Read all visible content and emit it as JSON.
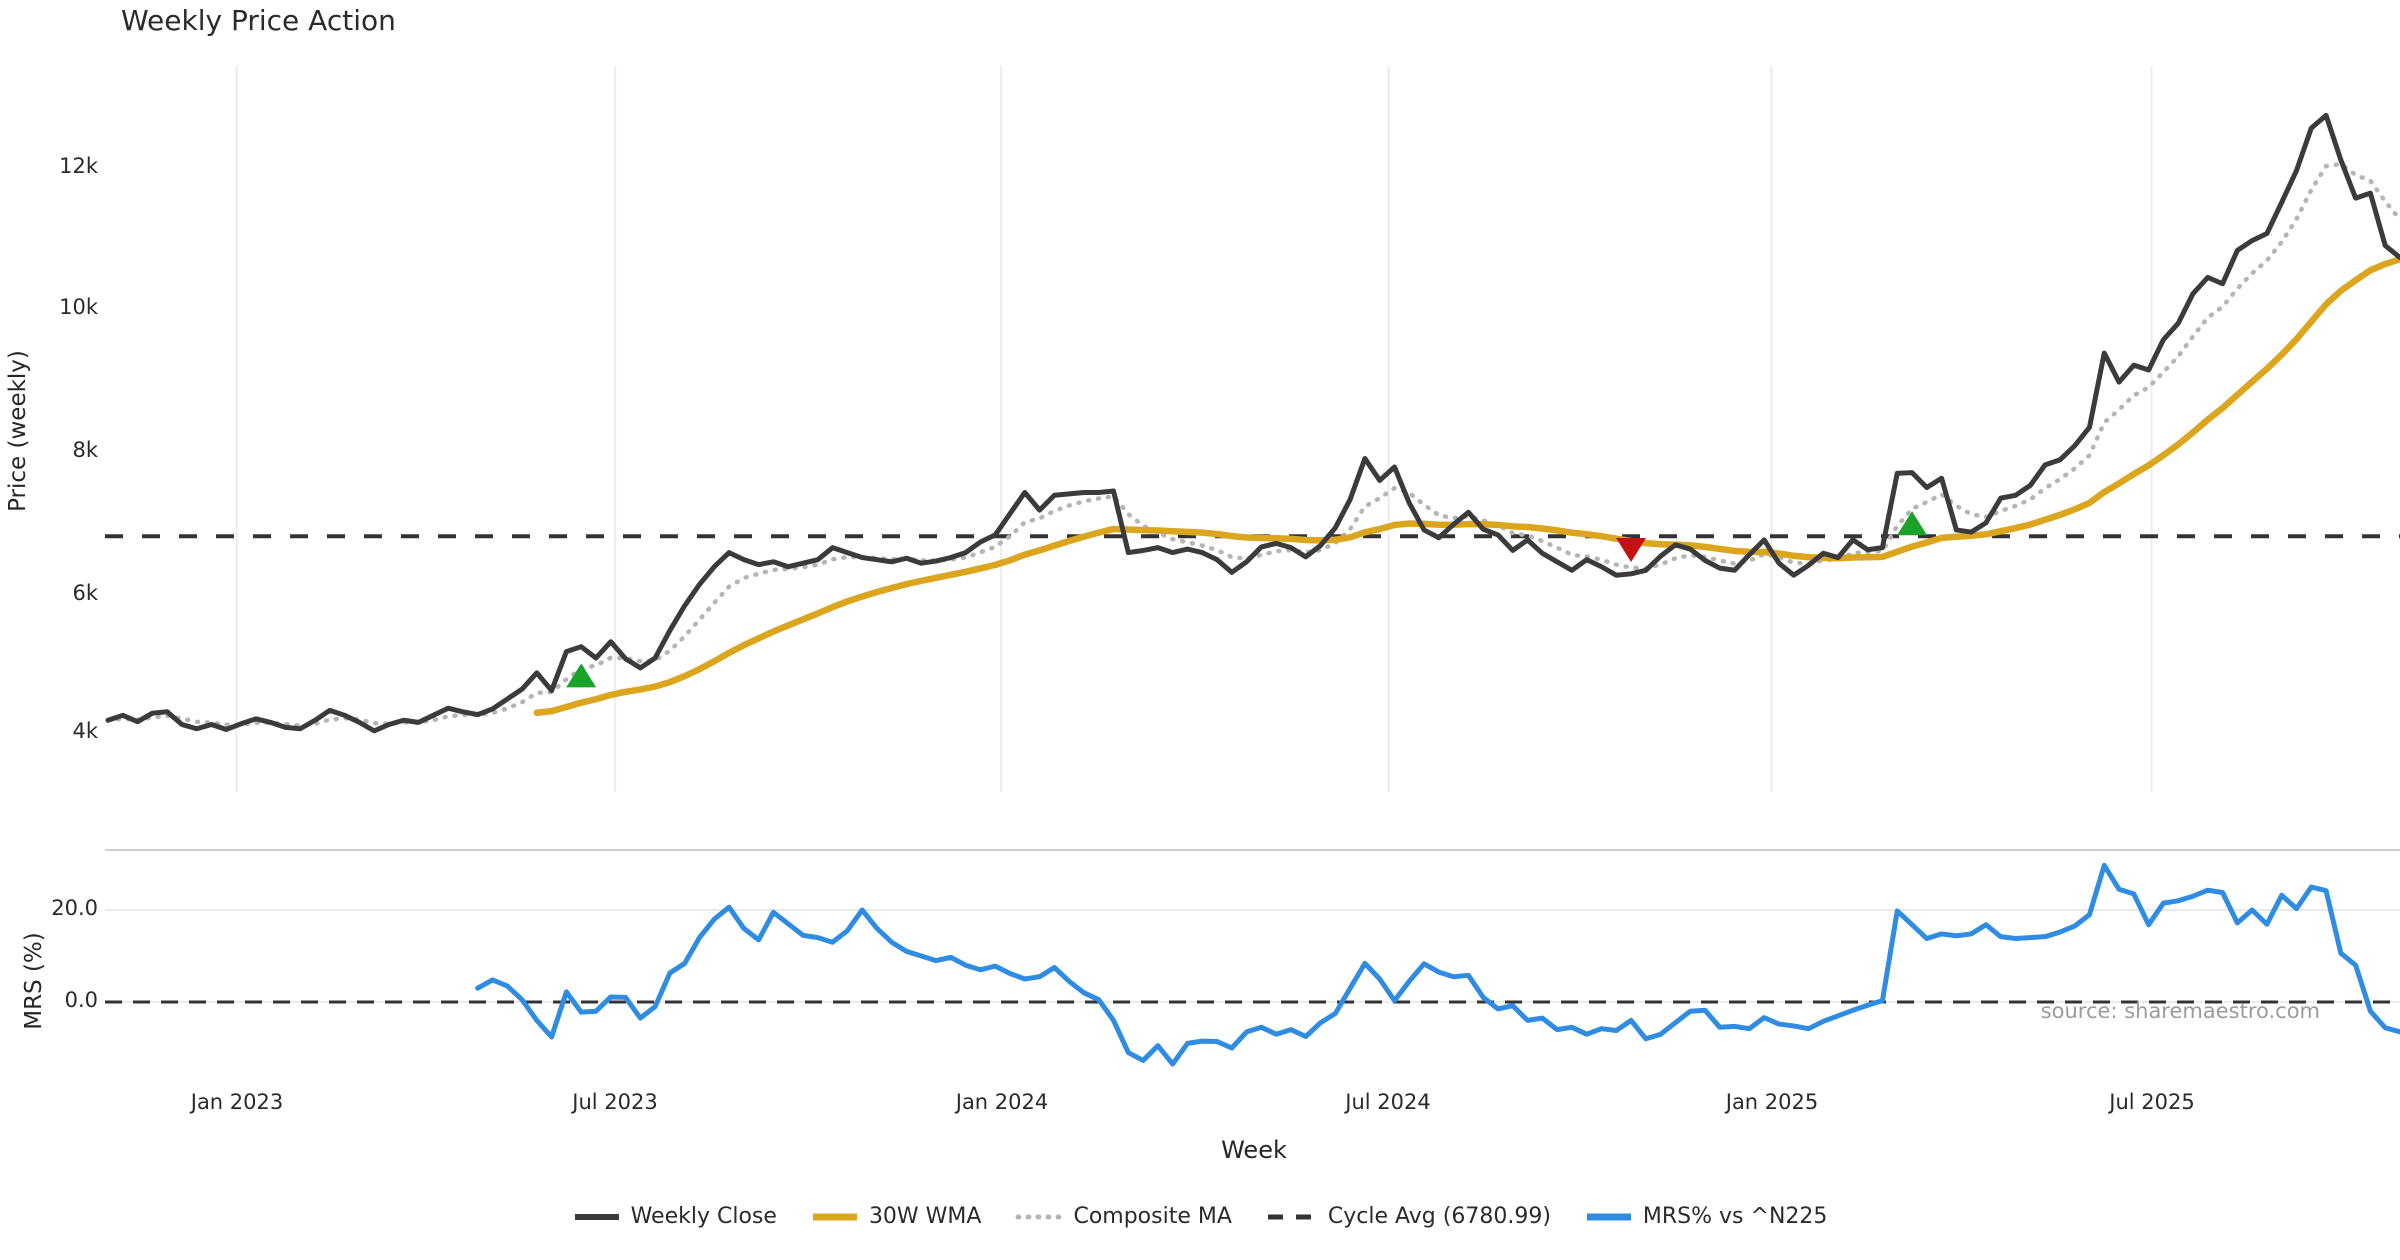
{
  "title": "Weekly Price Action",
  "source_note": "source: sharemaestro.com",
  "xlabel": "Week",
  "colors": {
    "weekly_close": "#3b3b3b",
    "wma30": "#dca51e",
    "composite_ma": "#b5b5b5",
    "cycle_avg": "#333333",
    "mrs": "#2e8ce2",
    "buy_marker": "#1aa328",
    "sell_marker": "#c41212",
    "grid": "#ececec",
    "panel_border": "#cfcfcf",
    "light_rule": "#e9e9e9",
    "text": "#262626",
    "muted": "#9b9b9b"
  },
  "legend": [
    {
      "label": "Weekly Close",
      "style": "solid-dark"
    },
    {
      "label": "30W WMA",
      "style": "solid-gold"
    },
    {
      "label": "Composite MA",
      "style": "dotted-gray"
    },
    {
      "label": "Cycle Avg (6780.99)",
      "style": "dashed-dark"
    },
    {
      "label": "MRS% vs ^N225",
      "style": "solid-blue"
    }
  ],
  "chart_data": [
    {
      "type": "line",
      "title": "Weekly Price Action",
      "ylabel": "Price (weekly)",
      "ylim": [
        3200,
        13370
      ],
      "grid": "vertical-only",
      "yticks": [
        {
          "label": "4k",
          "value": 4000
        },
        {
          "label": "6k",
          "value": 6000
        },
        {
          "label": "8k",
          "value": 8000
        },
        {
          "label": "10k",
          "value": 10000
        },
        {
          "label": "12k",
          "value": 12000
        }
      ],
      "xticks": [
        {
          "label": "Jan 2023",
          "week": 8.7
        },
        {
          "label": "Jul 2023",
          "week": 34.3
        },
        {
          "label": "Jan 2024",
          "week": 60.4
        },
        {
          "label": "Jul 2024",
          "week": 86.6
        },
        {
          "label": "Jan 2025",
          "week": 112.5
        },
        {
          "label": "Jul 2025",
          "week": 138.2
        }
      ],
      "cycle_avg": 6780.99,
      "series": [
        {
          "name": "Weekly Close",
          "start_week": 0,
          "values": [
            4180,
            4250,
            4160,
            4280,
            4300,
            4120,
            4060,
            4120,
            4050,
            4130,
            4200,
            4150,
            4080,
            4060,
            4180,
            4320,
            4250,
            4150,
            4030,
            4120,
            4180,
            4150,
            4250,
            4350,
            4300,
            4260,
            4340,
            4480,
            4620,
            4850,
            4600,
            5150,
            5220,
            5060,
            5290,
            5050,
            4920,
            5060,
            5450,
            5800,
            6100,
            6350,
            6550,
            6450,
            6380,
            6420,
            6350,
            6400,
            6450,
            6620,
            6550,
            6480,
            6450,
            6420,
            6470,
            6400,
            6430,
            6480,
            6550,
            6700,
            6800,
            7100,
            7400,
            7150,
            7360,
            7380,
            7400,
            7400,
            7420,
            6550,
            6580,
            6620,
            6550,
            6600,
            6550,
            6450,
            6270,
            6420,
            6630,
            6680,
            6620,
            6490,
            6650,
            6900,
            7300,
            7880,
            7570,
            7760,
            7250,
            6870,
            6760,
            6950,
            7120,
            6880,
            6800,
            6580,
            6730,
            6540,
            6420,
            6300,
            6450,
            6350,
            6230,
            6250,
            6300,
            6500,
            6660,
            6600,
            6440,
            6330,
            6300,
            6520,
            6730,
            6400,
            6230,
            6370,
            6540,
            6480,
            6730,
            6590,
            6620,
            7670,
            7680,
            7470,
            7600,
            6870,
            6840,
            6970,
            7320,
            7360,
            7500,
            7790,
            7860,
            8060,
            8320,
            9370,
            8960,
            9200,
            9130,
            9560,
            9790,
            10210,
            10440,
            10350,
            10820,
            10960,
            11060,
            11500,
            11950,
            12550,
            12730,
            12100,
            11560,
            11630,
            10890,
            10720
          ]
        },
        {
          "name": "30W WMA",
          "derived": "linear_weighted_ma_of_weekly_close",
          "window": 30,
          "start_week": 29
        },
        {
          "name": "Composite MA",
          "derived": "ema_of_weekly_close",
          "alpha": 0.32,
          "start_week": 0
        }
      ],
      "markers": {
        "buy": [
          {
            "week": 32,
            "value": 4800
          },
          {
            "week": 122,
            "value": 6950
          }
        ],
        "sell": [
          {
            "week": 103,
            "value": 6600
          }
        ]
      }
    },
    {
      "type": "line",
      "ylabel": "MRS (%)",
      "ylim": [
        -17,
        33
      ],
      "zero_line": 0.0,
      "yticks": [
        {
          "label": "0.0",
          "value": 0
        },
        {
          "label": "20.0",
          "value": 20
        }
      ],
      "series": [
        {
          "name": "MRS% vs ^N225",
          "start_week": 25,
          "values": [
            3.0,
            4.8,
            3.5,
            0.5,
            -4.0,
            -7.6,
            2.2,
            -2.2,
            -2.0,
            1.1,
            1.0,
            -3.5,
            -1.0,
            6.3,
            8.4,
            14.0,
            18.0,
            20.6,
            16.0,
            13.5,
            19.5,
            17.0,
            14.5,
            14.0,
            13.0,
            15.5,
            20.0,
            16.0,
            13.0,
            11.0,
            10.0,
            9.0,
            9.7,
            8.0,
            7.0,
            7.8,
            6.2,
            5.0,
            5.5,
            7.5,
            4.5,
            2.0,
            0.5,
            -4.0,
            -11.0,
            -12.7,
            -9.5,
            -13.5,
            -9.0,
            -8.5,
            -8.6,
            -10.0,
            -6.5,
            -5.5,
            -7.0,
            -6.0,
            -7.5,
            -4.5,
            -2.5,
            3.0,
            8.4,
            5.0,
            0.3,
            4.5,
            8.3,
            6.5,
            5.5,
            5.8,
            1.0,
            -1.5,
            -0.8,
            -4.0,
            -3.5,
            -6.0,
            -5.5,
            -7.0,
            -5.8,
            -6.2,
            -4.0,
            -8.0,
            -7.0,
            -4.5,
            -2.0,
            -1.8,
            -5.5,
            -5.3,
            -5.8,
            -3.4,
            -4.8,
            -5.2,
            -5.8,
            -4.2,
            -3.0,
            -1.8,
            -0.7,
            0.3,
            19.8,
            16.8,
            13.8,
            14.8,
            14.4,
            14.8,
            16.8,
            14.2,
            13.8,
            14.0,
            14.2,
            15.2,
            16.5,
            19.0,
            29.7,
            24.5,
            23.5,
            16.8,
            21.5,
            22.0,
            23.0,
            24.3,
            23.8,
            17.2,
            20.0,
            16.9,
            23.2,
            20.3,
            25.0,
            24.2,
            10.6,
            8.0,
            -2.0,
            -5.6,
            -6.5
          ]
        }
      ]
    }
  ]
}
